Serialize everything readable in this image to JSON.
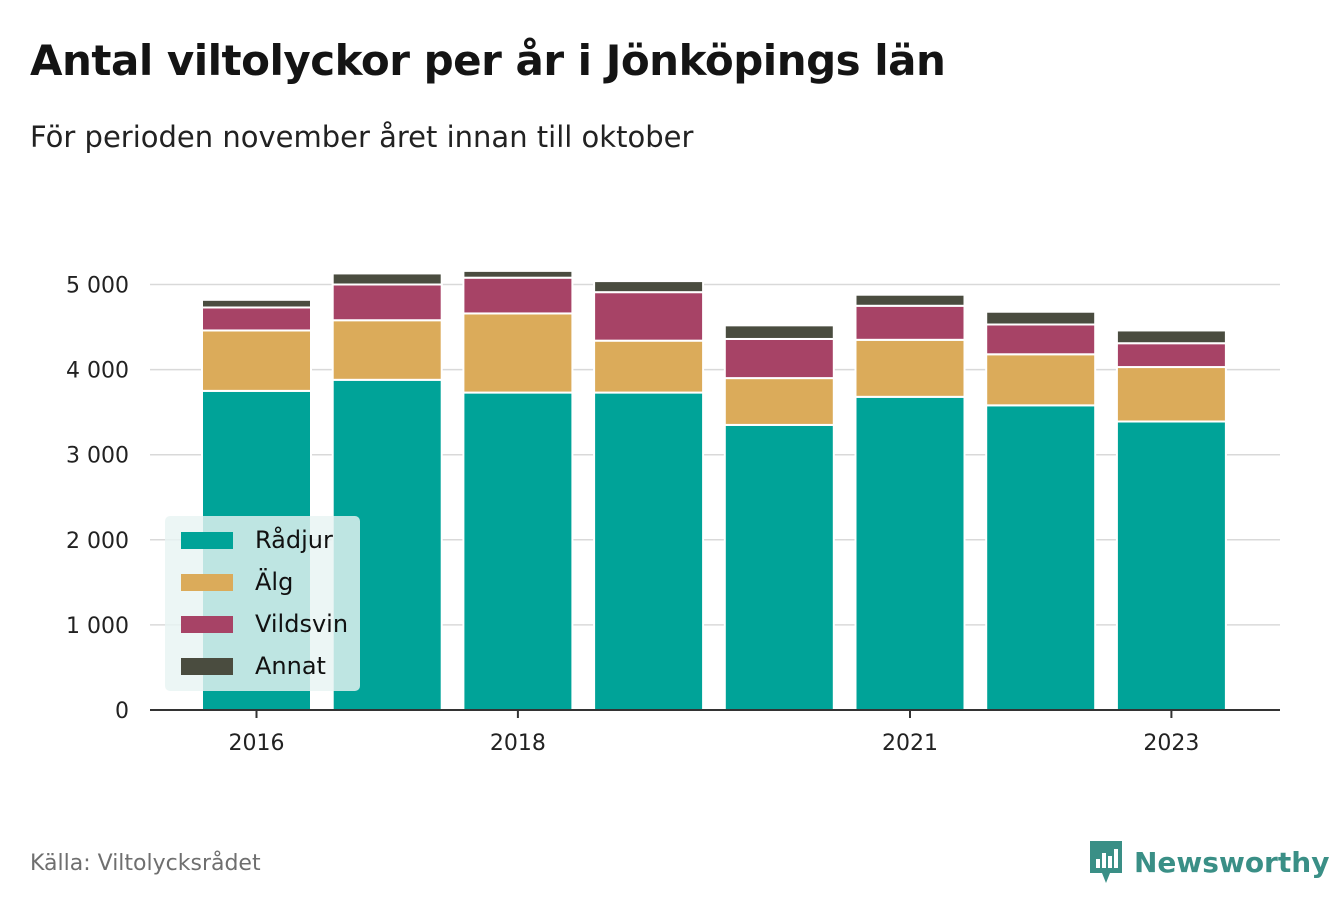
{
  "title": "Antal viltolyckor per år i Jönköpings län",
  "subtitle": "För perioden november året innan till oktober",
  "source": "Källa: Viltolycksrådet",
  "brand": {
    "name": "Newsworthy",
    "icon": "newsworthy-bar-chart-logo-icon",
    "color": "#3a8f86"
  },
  "chart_data": {
    "type": "bar",
    "stacked": true,
    "categories": [
      "2016",
      "2017",
      "2018",
      "2019",
      "2020",
      "2021",
      "2022",
      "2023"
    ],
    "x_tick_labels": [
      "2016",
      "2018",
      "2021",
      "2023"
    ],
    "y_ticks": [
      0,
      1000,
      2000,
      3000,
      4000,
      5000
    ],
    "y_tick_labels": [
      "0",
      "1 000",
      "2 000",
      "3 000",
      "4 000",
      "5 000"
    ],
    "ylim": [
      0,
      5300
    ],
    "grid": "horizontal",
    "legend_position": "bottom-left",
    "series": [
      {
        "name": "Rådjur",
        "color": "#00a398",
        "values": [
          3750,
          3880,
          3730,
          3730,
          3350,
          3680,
          3580,
          3390
        ]
      },
      {
        "name": "Älg",
        "color": "#dbab5a",
        "values": [
          710,
          700,
          930,
          610,
          550,
          670,
          600,
          640
        ]
      },
      {
        "name": "Vildsvin",
        "color": "#a74366",
        "values": [
          270,
          420,
          420,
          570,
          460,
          400,
          350,
          280
        ]
      },
      {
        "name": "Annat",
        "color": "#4a4c3f",
        "values": [
          90,
          130,
          80,
          130,
          160,
          130,
          150,
          150
        ]
      }
    ]
  }
}
